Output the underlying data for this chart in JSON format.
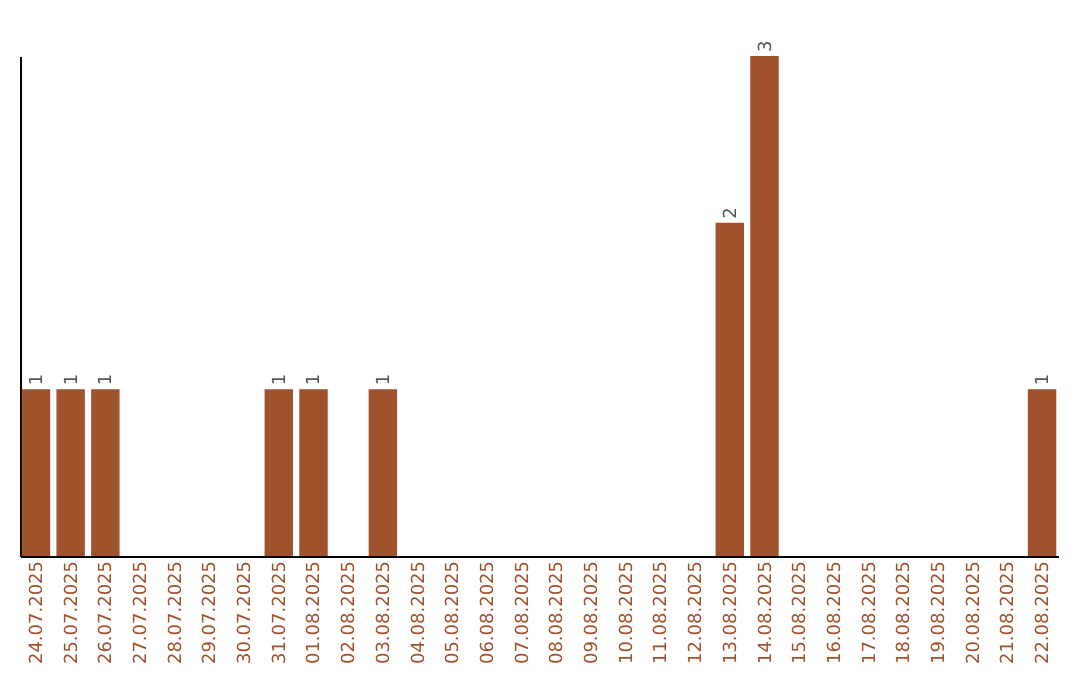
{
  "chart_data": {
    "type": "bar",
    "categories": [
      "24.07.2025",
      "25.07.2025",
      "26.07.2025",
      "27.07.2025",
      "28.07.2025",
      "29.07.2025",
      "30.07.2025",
      "31.07.2025",
      "01.08.2025",
      "02.08.2025",
      "03.08.2025",
      "04.08.2025",
      "05.08.2025",
      "06.08.2025",
      "07.08.2025",
      "08.08.2025",
      "09.08.2025",
      "10.08.2025",
      "11.08.2025",
      "12.08.2025",
      "13.08.2025",
      "14.08.2025",
      "15.08.2025",
      "16.08.2025",
      "17.08.2025",
      "18.08.2025",
      "19.08.2025",
      "20.08.2025",
      "21.08.2025",
      "22.08.2025"
    ],
    "values": [
      1,
      1,
      1,
      0,
      0,
      0,
      0,
      1,
      1,
      0,
      1,
      0,
      0,
      0,
      0,
      0,
      0,
      0,
      0,
      0,
      2,
      3,
      0,
      0,
      0,
      0,
      0,
      0,
      0,
      1
    ],
    "value_labels": [
      "1",
      "1",
      "1",
      null,
      null,
      null,
      null,
      "1",
      "1",
      null,
      "1",
      null,
      null,
      null,
      null,
      null,
      null,
      null,
      null,
      null,
      "2",
      "3",
      null,
      null,
      null,
      null,
      null,
      null,
      null,
      "1"
    ],
    "color": "#a0522d",
    "tick_labels": "x",
    "grid": false
  }
}
